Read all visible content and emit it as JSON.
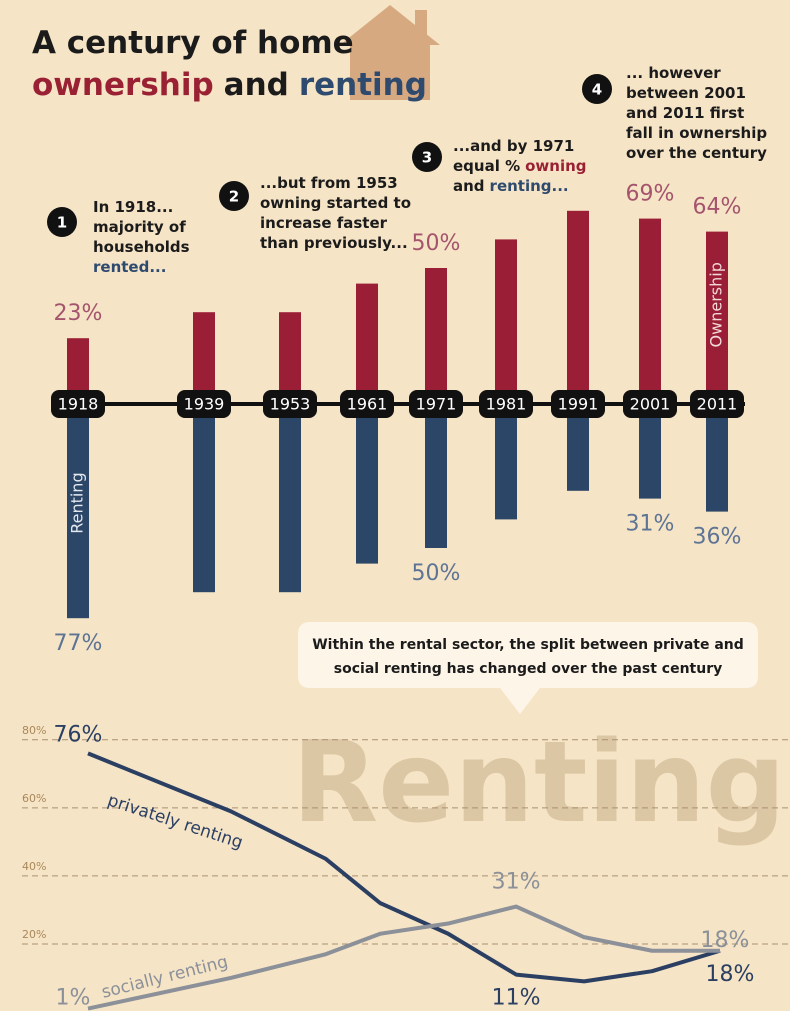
{
  "chart_data": [
    {
      "type": "bar",
      "title": [
        {
          "text": "A century of home",
          "color": "#1b1b1b"
        },
        {
          "text": "ownership",
          "color": "#9a2134"
        },
        {
          "text": "and",
          "color": "#1b1b1b"
        },
        {
          "text": "renting",
          "color": "#2e4a6e"
        }
      ],
      "categories": [
        "1918",
        "1939",
        "1953",
        "1961",
        "1971",
        "1981",
        "1991",
        "2001",
        "2011"
      ],
      "series": [
        {
          "name": "Ownership",
          "color": "#9a1f36",
          "label_color": "#a4546c",
          "values": [
            23,
            33,
            33,
            44,
            50,
            61,
            72,
            69,
            64
          ],
          "value_labels": [
            "23%",
            null,
            null,
            null,
            "50%",
            null,
            null,
            "69%",
            "64%"
          ]
        },
        {
          "name": "Renting",
          "color": "#2c4667",
          "label_color": "#5d7495",
          "values": [
            77,
            67,
            67,
            56,
            50,
            39,
            28,
            31,
            36
          ],
          "value_labels": [
            "77%",
            null,
            null,
            null,
            "50%",
            null,
            null,
            "31%",
            "36%"
          ]
        }
      ],
      "annotations": [
        {
          "number": "1",
          "lines": [
            [
              {
                "text": "In 1918..."
              }
            ],
            [
              {
                "text": "majority of"
              }
            ],
            [
              {
                "text": "households"
              }
            ],
            [
              {
                "text": "rented...",
                "color": "#2e4a6e"
              }
            ]
          ]
        },
        {
          "number": "2",
          "lines": [
            [
              {
                "text": "...but from 1953"
              }
            ],
            [
              {
                "text": "owning started to"
              }
            ],
            [
              {
                "text": "increase faster"
              }
            ],
            [
              {
                "text": "than previously..."
              }
            ]
          ]
        },
        {
          "number": "3",
          "lines": [
            [
              {
                "text": "...and by 1971"
              }
            ],
            [
              {
                "text": "equal %"
              },
              {
                "text": "owning",
                "color": "#9a2134"
              }
            ],
            [
              {
                "text": "and"
              },
              {
                "text": "renting...",
                "color": "#2e4a6e"
              }
            ]
          ]
        },
        {
          "number": "4",
          "lines": [
            [
              {
                "text": "... however"
              }
            ],
            [
              {
                "text": "between 2001"
              }
            ],
            [
              {
                "text": "and 2011 first"
              }
            ],
            [
              {
                "text": "fall in ownership"
              }
            ],
            [
              {
                "text": "over the century"
              }
            ]
          ]
        }
      ]
    },
    {
      "type": "line",
      "callout": [
        "Within the rental sector, the split between private and",
        "social  renting has changed over the past century"
      ],
      "watermark": "Renting",
      "x": [
        1918,
        1939,
        1953,
        1961,
        1971,
        1981,
        1991,
        2001,
        2011
      ],
      "ylim": [
        0,
        82
      ],
      "yticks": [
        {
          "value": 20,
          "label": "20%"
        },
        {
          "value": 40,
          "label": "40%"
        },
        {
          "value": 60,
          "label": "60%"
        },
        {
          "value": 80,
          "label": "80%"
        }
      ],
      "grid": true,
      "series": [
        {
          "name": "privately renting",
          "color": "#2b3f63",
          "values": [
            76,
            59,
            45,
            32,
            23,
            11,
            9,
            12,
            18
          ],
          "value_labels": [
            "76%",
            null,
            null,
            null,
            null,
            "11%",
            null,
            null,
            "18%"
          ]
        },
        {
          "name": "socially renting",
          "color": "#8b9099",
          "values": [
            1,
            10,
            17,
            23,
            26,
            31,
            22,
            18,
            18
          ],
          "value_labels": [
            "1%",
            null,
            null,
            null,
            null,
            "31%",
            null,
            null,
            "18%"
          ]
        }
      ]
    }
  ]
}
